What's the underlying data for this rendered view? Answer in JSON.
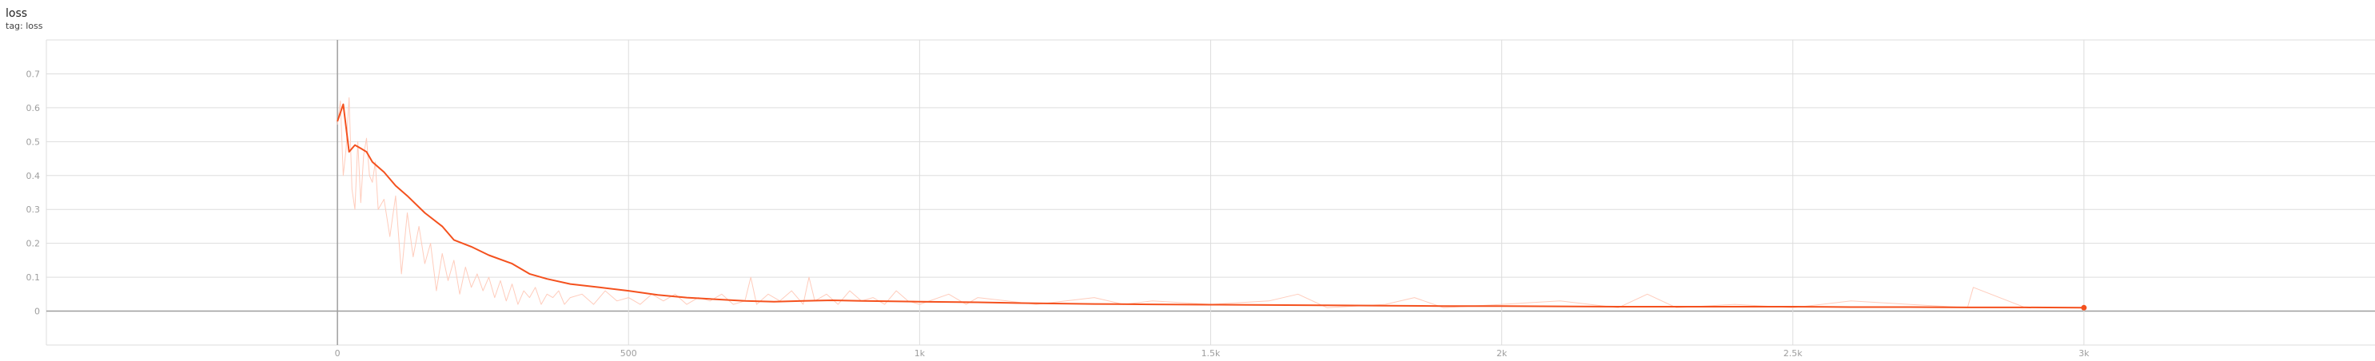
{
  "card": {
    "title": "loss",
    "tag": "tag: loss"
  },
  "colors": {
    "raw": "#ffccbc",
    "smoothed": "#f4511e",
    "grid": "#dddddd",
    "zero_axis": "#9e9e9e",
    "tick_text": "#9e9e9e"
  },
  "chart_data": {
    "type": "line",
    "title": "loss",
    "xlabel": "",
    "ylabel": "",
    "xlim": [
      -500,
      3500
    ],
    "ylim": [
      -0.1,
      0.8
    ],
    "x_ticks": [
      0,
      500,
      1000,
      1500,
      2000,
      2500,
      3000
    ],
    "x_tick_labels": [
      "0",
      "500",
      "1k",
      "1.5k",
      "2k",
      "2.5k",
      "3k"
    ],
    "y_ticks": [
      0,
      0.1,
      0.2,
      0.3,
      0.4,
      0.5,
      0.6,
      0.7
    ],
    "y_tick_labels": [
      "0",
      "0.1",
      "0.2",
      "0.3",
      "0.4",
      "0.5",
      "0.6",
      "0.7"
    ],
    "grid": true,
    "series": [
      {
        "role": "smoothed",
        "x": [
          0,
          10,
          20,
          30,
          40,
          50,
          60,
          80,
          100,
          120,
          150,
          180,
          200,
          230,
          260,
          300,
          330,
          360,
          400,
          450,
          500,
          550,
          600,
          650,
          700,
          750,
          800,
          850,
          900,
          1000,
          1100,
          1200,
          1300,
          1400,
          1500,
          1600,
          1700,
          1800,
          1900,
          2000,
          2100,
          2200,
          2300,
          2400,
          2500,
          2600,
          2700,
          2800,
          2900,
          3000
        ],
        "y": [
          0.56,
          0.61,
          0.47,
          0.49,
          0.48,
          0.47,
          0.44,
          0.41,
          0.37,
          0.34,
          0.29,
          0.25,
          0.21,
          0.19,
          0.165,
          0.14,
          0.11,
          0.095,
          0.08,
          0.07,
          0.06,
          0.048,
          0.04,
          0.035,
          0.03,
          0.028,
          0.03,
          0.032,
          0.03,
          0.028,
          0.026,
          0.023,
          0.021,
          0.02,
          0.019,
          0.018,
          0.017,
          0.016,
          0.015,
          0.015,
          0.014,
          0.013,
          0.013,
          0.013,
          0.013,
          0.012,
          0.012,
          0.011,
          0.011,
          0.01
        ]
      },
      {
        "role": "raw",
        "x": [
          0,
          5,
          10,
          15,
          20,
          25,
          30,
          35,
          40,
          45,
          50,
          55,
          60,
          65,
          70,
          80,
          90,
          100,
          110,
          120,
          130,
          140,
          150,
          160,
          170,
          180,
          190,
          200,
          210,
          220,
          230,
          240,
          250,
          260,
          270,
          280,
          290,
          300,
          310,
          320,
          330,
          340,
          350,
          360,
          370,
          380,
          390,
          400,
          420,
          440,
          460,
          480,
          500,
          520,
          540,
          560,
          580,
          600,
          620,
          640,
          660,
          680,
          700,
          710,
          720,
          740,
          760,
          780,
          800,
          810,
          820,
          840,
          860,
          880,
          900,
          920,
          940,
          960,
          980,
          1000,
          1050,
          1080,
          1100,
          1150,
          1200,
          1300,
          1350,
          1400,
          1500,
          1600,
          1650,
          1700,
          1800,
          1850,
          1900,
          2000,
          2100,
          2200,
          2250,
          2300,
          2400,
          2500,
          2600,
          2700,
          2800,
          2810,
          2900,
          3000
        ],
        "y": [
          0.55,
          0.62,
          0.4,
          0.48,
          0.63,
          0.36,
          0.3,
          0.5,
          0.32,
          0.46,
          0.51,
          0.4,
          0.38,
          0.44,
          0.3,
          0.33,
          0.22,
          0.34,
          0.11,
          0.29,
          0.16,
          0.25,
          0.14,
          0.2,
          0.06,
          0.17,
          0.09,
          0.15,
          0.05,
          0.13,
          0.07,
          0.11,
          0.06,
          0.1,
          0.04,
          0.09,
          0.03,
          0.08,
          0.02,
          0.06,
          0.04,
          0.07,
          0.02,
          0.05,
          0.04,
          0.06,
          0.02,
          0.04,
          0.05,
          0.02,
          0.06,
          0.03,
          0.04,
          0.02,
          0.05,
          0.03,
          0.05,
          0.02,
          0.04,
          0.03,
          0.05,
          0.02,
          0.03,
          0.1,
          0.02,
          0.05,
          0.03,
          0.06,
          0.02,
          0.1,
          0.03,
          0.05,
          0.02,
          0.06,
          0.03,
          0.04,
          0.02,
          0.06,
          0.03,
          0.02,
          0.05,
          0.02,
          0.04,
          0.03,
          0.02,
          0.04,
          0.02,
          0.03,
          0.02,
          0.03,
          0.05,
          0.01,
          0.02,
          0.04,
          0.01,
          0.02,
          0.03,
          0.01,
          0.05,
          0.01,
          0.02,
          0.01,
          0.03,
          0.02,
          0.01,
          0.07,
          0.01,
          0.01
        ]
      }
    ],
    "end_marker": {
      "x": 3000,
      "y": 0.01
    }
  }
}
